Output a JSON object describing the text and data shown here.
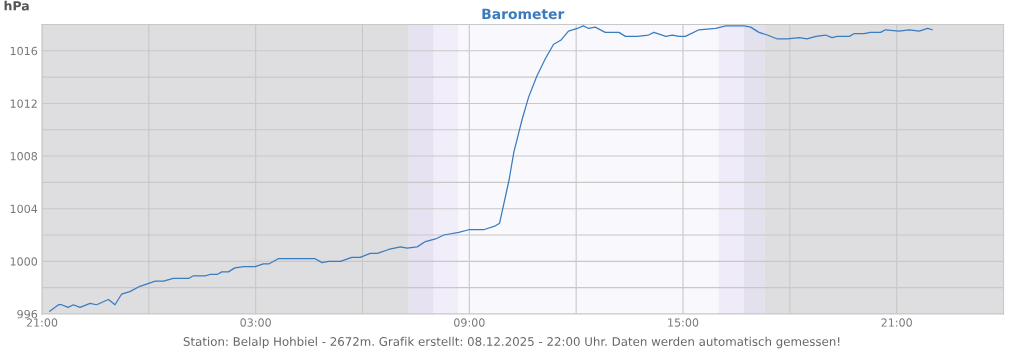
{
  "chart_data": {
    "type": "line",
    "title": "Barometer",
    "ylabel": "hPa",
    "annotations": [
      "Station: Belalp Hohbiel - 2672m. Grafik erstellt: 08.12.2025 - 22:00 Uhr. Daten werden automatisch gemessen!"
    ],
    "x": [
      "2025-12-07T21:13",
      "2025-12-07T21:28",
      "2025-12-07T21:33",
      "2025-12-07T21:44",
      "2025-12-07T21:53",
      "2025-12-07T22:04",
      "2025-12-07T22:21",
      "2025-12-07T22:32",
      "2025-12-07T22:52",
      "2025-12-07T23:03",
      "2025-12-07T23:14",
      "2025-12-07T23:28",
      "2025-12-07T23:45",
      "2025-12-08T00:11",
      "2025-12-08T00:25",
      "2025-12-08T00:41",
      "2025-12-08T01:07",
      "2025-12-08T01:15",
      "2025-12-08T01:35",
      "2025-12-08T01:43",
      "2025-12-08T01:55",
      "2025-12-08T02:03",
      "2025-12-08T02:14",
      "2025-12-08T02:25",
      "2025-12-08T02:40",
      "2025-12-08T02:59",
      "2025-12-08T03:13",
      "2025-12-08T03:22",
      "2025-12-08T03:38",
      "2025-12-08T04:01",
      "2025-12-08T04:10",
      "2025-12-08T04:29",
      "2025-12-08T04:40",
      "2025-12-08T04:52",
      "2025-12-08T05:03",
      "2025-12-08T05:23",
      "2025-12-08T05:42",
      "2025-12-08T05:56",
      "2025-12-08T06:13",
      "2025-12-08T06:25",
      "2025-12-08T06:44",
      "2025-12-08T07:04",
      "2025-12-08T07:15",
      "2025-12-08T07:32",
      "2025-12-08T07:46",
      "2025-12-08T08:03",
      "2025-12-08T08:17",
      "2025-12-08T08:42",
      "2025-12-08T08:59",
      "2025-12-08T09:24",
      "2025-12-08T09:44",
      "2025-12-08T09:51",
      "2025-12-08T10:07",
      "2025-12-08T10:15",
      "2025-12-08T10:29",
      "2025-12-08T10:40",
      "2025-12-08T10:54",
      "2025-12-08T11:08",
      "2025-12-08T11:22",
      "2025-12-08T11:34",
      "2025-12-08T11:47",
      "2025-12-08T12:02",
      "2025-12-08T12:12",
      "2025-12-08T12:21",
      "2025-12-08T12:32",
      "2025-12-08T12:49",
      "2025-12-08T13:12",
      "2025-12-08T13:23",
      "2025-12-08T13:43",
      "2025-12-08T14:02",
      "2025-12-08T14:11",
      "2025-12-08T14:31",
      "2025-12-08T14:42",
      "2025-12-08T14:53",
      "2025-12-08T15:04",
      "2025-12-08T15:27",
      "2025-12-08T15:55",
      "2025-12-08T16:12",
      "2025-12-08T16:20",
      "2025-12-08T16:34",
      "2025-12-08T16:43",
      "2025-12-08T16:54",
      "2025-12-08T17:08",
      "2025-12-08T17:22",
      "2025-12-08T17:39",
      "2025-12-08T17:56",
      "2025-12-08T18:16",
      "2025-12-08T18:29",
      "2025-12-08T18:44",
      "2025-12-08T19:00",
      "2025-12-08T19:11",
      "2025-12-08T19:20",
      "2025-12-08T19:40",
      "2025-12-08T19:48",
      "2025-12-08T20:05",
      "2025-12-08T20:16",
      "2025-12-08T20:33",
      "2025-12-08T20:41",
      "2025-12-08T21:04",
      "2025-12-08T21:21",
      "2025-12-08T21:38",
      "2025-12-08T21:52",
      "2025-12-08T22:00"
    ],
    "series": [
      {
        "color": "#3a7cc0",
        "values": [
          996.2,
          996.7,
          996.7,
          996.5,
          996.7,
          996.5,
          996.8,
          996.7,
          997.1,
          996.7,
          997.5,
          997.7,
          998.1,
          998.5,
          998.5,
          998.7,
          998.7,
          998.9,
          998.9,
          999.0,
          999.0,
          999.2,
          999.2,
          999.5,
          999.6,
          999.6,
          999.8,
          999.8,
          1000.2,
          1000.2,
          1000.2,
          1000.2,
          1000.2,
          999.9,
          1000.0,
          1000.0,
          1000.3,
          1000.3,
          1000.6,
          1000.6,
          1000.9,
          1001.1,
          1001.0,
          1001.1,
          1001.5,
          1001.7,
          1002.0,
          1002.2,
          1002.4,
          1002.4,
          1002.7,
          1002.9,
          1006.2,
          1008.3,
          1010.8,
          1012.5,
          1014.1,
          1015.4,
          1016.5,
          1016.8,
          1017.5,
          1017.7,
          1017.9,
          1017.7,
          1017.8,
          1017.4,
          1017.4,
          1017.1,
          1017.1,
          1017.2,
          1017.4,
          1017.1,
          1017.2,
          1017.1,
          1017.1,
          1017.6,
          1017.7,
          1017.9,
          1017.9,
          1017.9,
          1017.9,
          1017.8,
          1017.4,
          1017.2,
          1016.9,
          1016.9,
          1017.0,
          1016.9,
          1017.1,
          1017.2,
          1017.0,
          1017.1,
          1017.1,
          1017.3,
          1017.3,
          1017.4,
          1017.4,
          1017.6,
          1017.5,
          1017.6,
          1017.5,
          1017.7,
          1017.6
        ]
      }
    ],
    "xlim": [
      "2025-12-07T21:00",
      "2025-12-09T00:00"
    ],
    "xticks": [
      {
        "value": "2025-12-07T21:00",
        "label": "21:00"
      },
      {
        "value": "2025-12-08T00:00",
        "label": null
      },
      {
        "value": "2025-12-08T03:00",
        "label": "03:00"
      },
      {
        "value": "2025-12-08T06:00",
        "label": null
      },
      {
        "value": "2025-12-08T09:00",
        "label": "09:00"
      },
      {
        "value": "2025-12-08T12:00",
        "label": null
      },
      {
        "value": "2025-12-08T15:00",
        "label": "15:00"
      },
      {
        "value": "2025-12-08T18:00",
        "label": null
      },
      {
        "value": "2025-12-08T21:00",
        "label": "21:00"
      }
    ],
    "ylim": [
      996,
      1018
    ],
    "yticks": [
      996,
      {
        "value": 998,
        "label": null
      },
      1000,
      {
        "value": 1002,
        "label": null
      },
      1004,
      {
        "value": 1006,
        "label": null
      },
      1008,
      {
        "value": 1010,
        "label": null
      },
      1012,
      {
        "value": 1014,
        "label": null
      },
      1016,
      {
        "value": 1018,
        "label": null
      }
    ],
    "bands": [
      {
        "axis": "x",
        "from": "2025-12-07T21:00",
        "to": "2025-12-08T07:18",
        "color": "#dedee0"
      },
      {
        "axis": "x",
        "from": "2025-12-08T07:18",
        "to": "2025-12-08T08:00",
        "color": "#e6e2f2"
      },
      {
        "axis": "x",
        "from": "2025-12-08T08:00",
        "to": "2025-12-08T08:42",
        "color": "#f1eefa"
      },
      {
        "axis": "x",
        "from": "2025-12-08T08:42",
        "to": "2025-12-08T16:00",
        "color": "#f9f8fd"
      },
      {
        "axis": "x",
        "from": "2025-12-08T16:00",
        "to": "2025-12-08T16:42",
        "color": "#efebf8"
      },
      {
        "axis": "x",
        "from": "2025-12-08T16:42",
        "to": "2025-12-08T17:18",
        "color": "#e4e1ee"
      },
      {
        "axis": "x",
        "from": "2025-12-08T17:18",
        "to": "2025-12-09T00:00",
        "color": "#dedee0"
      }
    ],
    "grid": true,
    "marker": "none",
    "line_style": "solid"
  }
}
